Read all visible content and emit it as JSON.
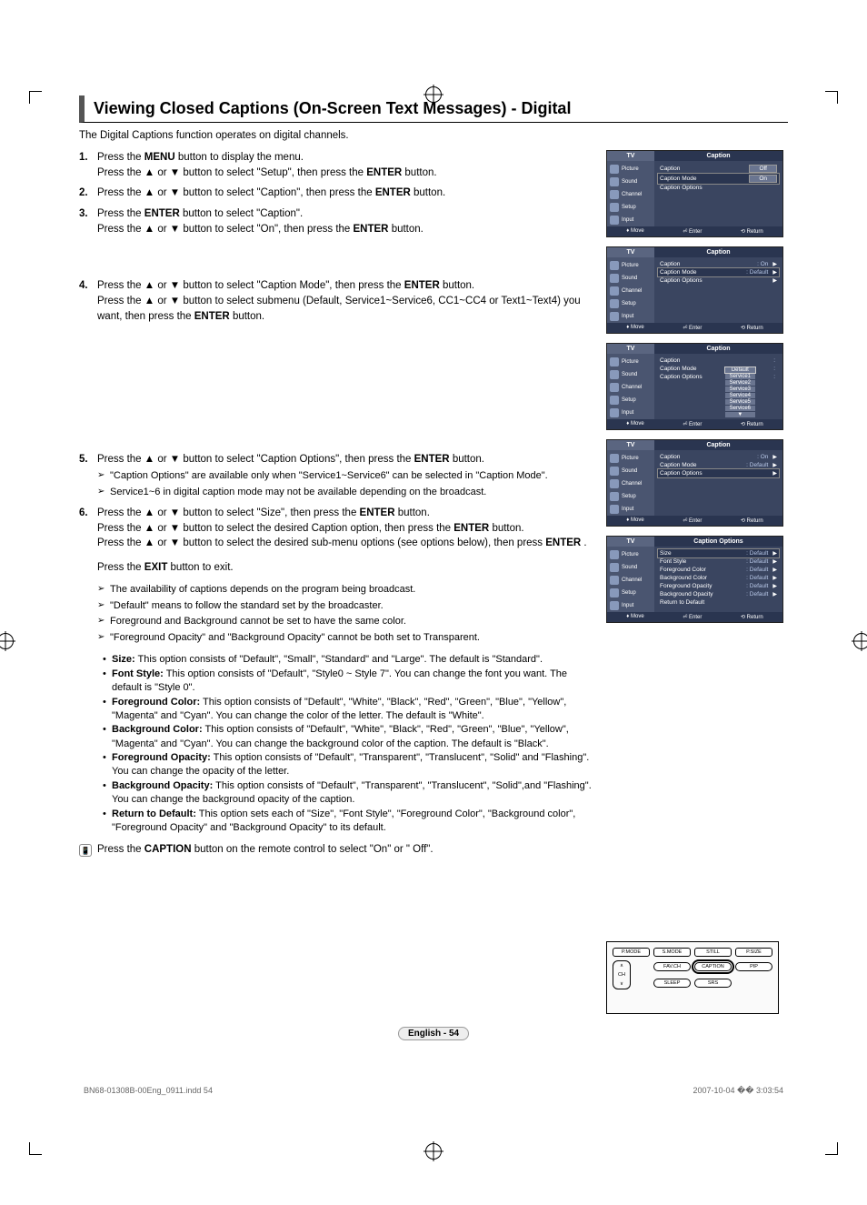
{
  "title": "Viewing Closed Captions (On-Screen Text Messages) - Digital",
  "intro": "The Digital Captions function operates on digital channels.",
  "steps": {
    "s1a": "Press the MENU button to display the menu.",
    "s1b": "Press the ▲ or ▼ button to select \"Setup\", then press the ENTER button.",
    "s2": "Press the ▲ or ▼ button to select \"Caption\", then press the ENTER button.",
    "s3a": "Press the ENTER button to select \"Caption\".",
    "s3b": "Press the ▲ or ▼ button to select \"On\", then press the ENTER button.",
    "s4a": "Press the ▲ or ▼ button to select \"Caption Mode\", then press the ENTER button.",
    "s4b": "Press the ▲ or ▼ button to select submenu (Default, Service1~Service6, CC1~CC4 or Text1~Text4) you want, then press the ENTER button.",
    "s5a": "Press the ▲ or ▼ button to select \"Caption Options\", then press the ENTER button.",
    "s5n1": "\"Caption Options\" are available only when \"Service1~Service6\" can be selected in \"Caption Mode\".",
    "s5n2": "Service1~6 in digital caption mode may not be available depending on the broadcast.",
    "s6a": "Press the ▲ or ▼ button to select \"Size\", then press the ENTER button.",
    "s6b": "Press the ▲ or ▼ button to select the desired Caption option, then press the ENTER button.",
    "s6c": "Press the ▲ or ▼ button to select the desired sub-menu options (see options below), then press ENTER .",
    "s6exit": "Press the EXIT button to exit.",
    "s6n1": "The availability of captions depends on the program being broadcast.",
    "s6n2": "\"Default\" means to follow the standard set by the broadcaster.",
    "s6n3": "Foreground and Background cannot be set to have the same color.",
    "s6n4": "\"Foreground Opacity\" and \"Background Opacity\" cannot be both set to Transparent."
  },
  "options": [
    {
      "label": "Size:",
      "desc": "This option consists of \"Default\", \"Small\", \"Standard\" and \"Large\". The default is \"Standard\"."
    },
    {
      "label": "Font Style:",
      "desc": "This option consists of \"Default\", \"Style0 ~ Style 7\". You can change the font you want. The default is \"Style 0\"."
    },
    {
      "label": "Foreground Color:",
      "desc": "This option consists of \"Default\", \"White\", \"Black\", \"Red\", \"Green\", \"Blue\", \"Yellow\", \"Magenta\" and \"Cyan\". You can change the color of the letter. The default is \"White\"."
    },
    {
      "label": "Background Color:",
      "desc": "This option consists of \"Default\", \"White\", \"Black\", \"Red\", \"Green\", \"Blue\", \"Yellow\", \"Magenta\" and \"Cyan\". You can change the background color of the caption. The default is \"Black\"."
    },
    {
      "label": "Foreground Opacity:",
      "desc": "This option consists of \"Default\", \"Transparent\", \"Translucent\", \"Solid\" and \"Flashing\". You can change the opacity of the letter."
    },
    {
      "label": "Background Opacity:",
      "desc": "This option consists of \"Default\", \"Transparent\", \"Translucent\", \"Solid\",and \"Flashing\". You can change the background opacity of the caption."
    },
    {
      "label": "Return to Default:",
      "desc": "This option sets each of \"Size\", \"Font Style\", \"Foreground Color\", \"Background color\", \"Foreground Opacity\" and \"Background Opacity\" to its default."
    }
  ],
  "remoteNote": "Press the CAPTION button on the remote control to select \"On\" or \" Off\".",
  "pageLabel": "English - 54",
  "footer": {
    "left": "BN68-01308B-00Eng_0911.indd   54",
    "right": "2007-10-04   �� 3:03:54"
  },
  "osd": {
    "tv": "TV",
    "sideItems": [
      "Picture",
      "Sound",
      "Channel",
      "Setup",
      "Input"
    ],
    "foot": {
      "move": "Move",
      "enter": "Enter",
      "return": "Return"
    },
    "menu1": {
      "title": "Caption",
      "rows": [
        {
          "label": "Caption",
          "value": "Off",
          "box": true
        },
        {
          "label": "Caption Mode",
          "value": "On",
          "box": true,
          "hl": true
        },
        {
          "label": "Caption Options",
          "value": ""
        }
      ]
    },
    "menu2": {
      "title": "Caption",
      "rows": [
        {
          "label": "Caption",
          "value": ": On",
          "arrow": true
        },
        {
          "label": "Caption Mode",
          "value": ": Default",
          "arrow": true,
          "hl": true
        },
        {
          "label": "Caption Options",
          "value": "",
          "arrow": true
        }
      ]
    },
    "menu3": {
      "title": "Caption",
      "rows": [
        {
          "label": "Caption",
          "value": ""
        },
        {
          "label": "Caption Mode",
          "value": ""
        },
        {
          "label": "Caption Options",
          "value": ""
        }
      ],
      "services": [
        "Default",
        "Service1",
        "Service2",
        "Service3",
        "Service4",
        "Service5",
        "Service6",
        "▼"
      ]
    },
    "menu4": {
      "title": "Caption",
      "rows": [
        {
          "label": "Caption",
          "value": ": On",
          "arrow": true
        },
        {
          "label": "Caption Mode",
          "value": ": Default",
          "arrow": true
        },
        {
          "label": "Caption Options",
          "value": "",
          "arrow": true,
          "hl": true
        }
      ]
    },
    "menu5": {
      "title": "Caption Options",
      "rows": [
        {
          "label": "Size",
          "value": ": Default",
          "arrow": true,
          "hl": true
        },
        {
          "label": "Font Style",
          "value": ": Default",
          "arrow": true
        },
        {
          "label": "Foreground Color",
          "value": ": Default",
          "arrow": true
        },
        {
          "label": "Background Color",
          "value": ": Default",
          "arrow": true
        },
        {
          "label": "Foreground Opacity",
          "value": ": Default",
          "arrow": true
        },
        {
          "label": "Background Opacity",
          "value": ": Default",
          "arrow": true
        },
        {
          "label": "Return to Default",
          "value": "",
          "arrow": false
        }
      ]
    }
  },
  "remote": {
    "row1": [
      "P.MODE",
      "S.MODE",
      "STILL",
      "P.SIZE"
    ],
    "row2": [
      "FAV.CH",
      "CAPTION",
      "PIP"
    ],
    "row3": [
      "SLEEP",
      "SRS"
    ],
    "ch": "CH"
  }
}
